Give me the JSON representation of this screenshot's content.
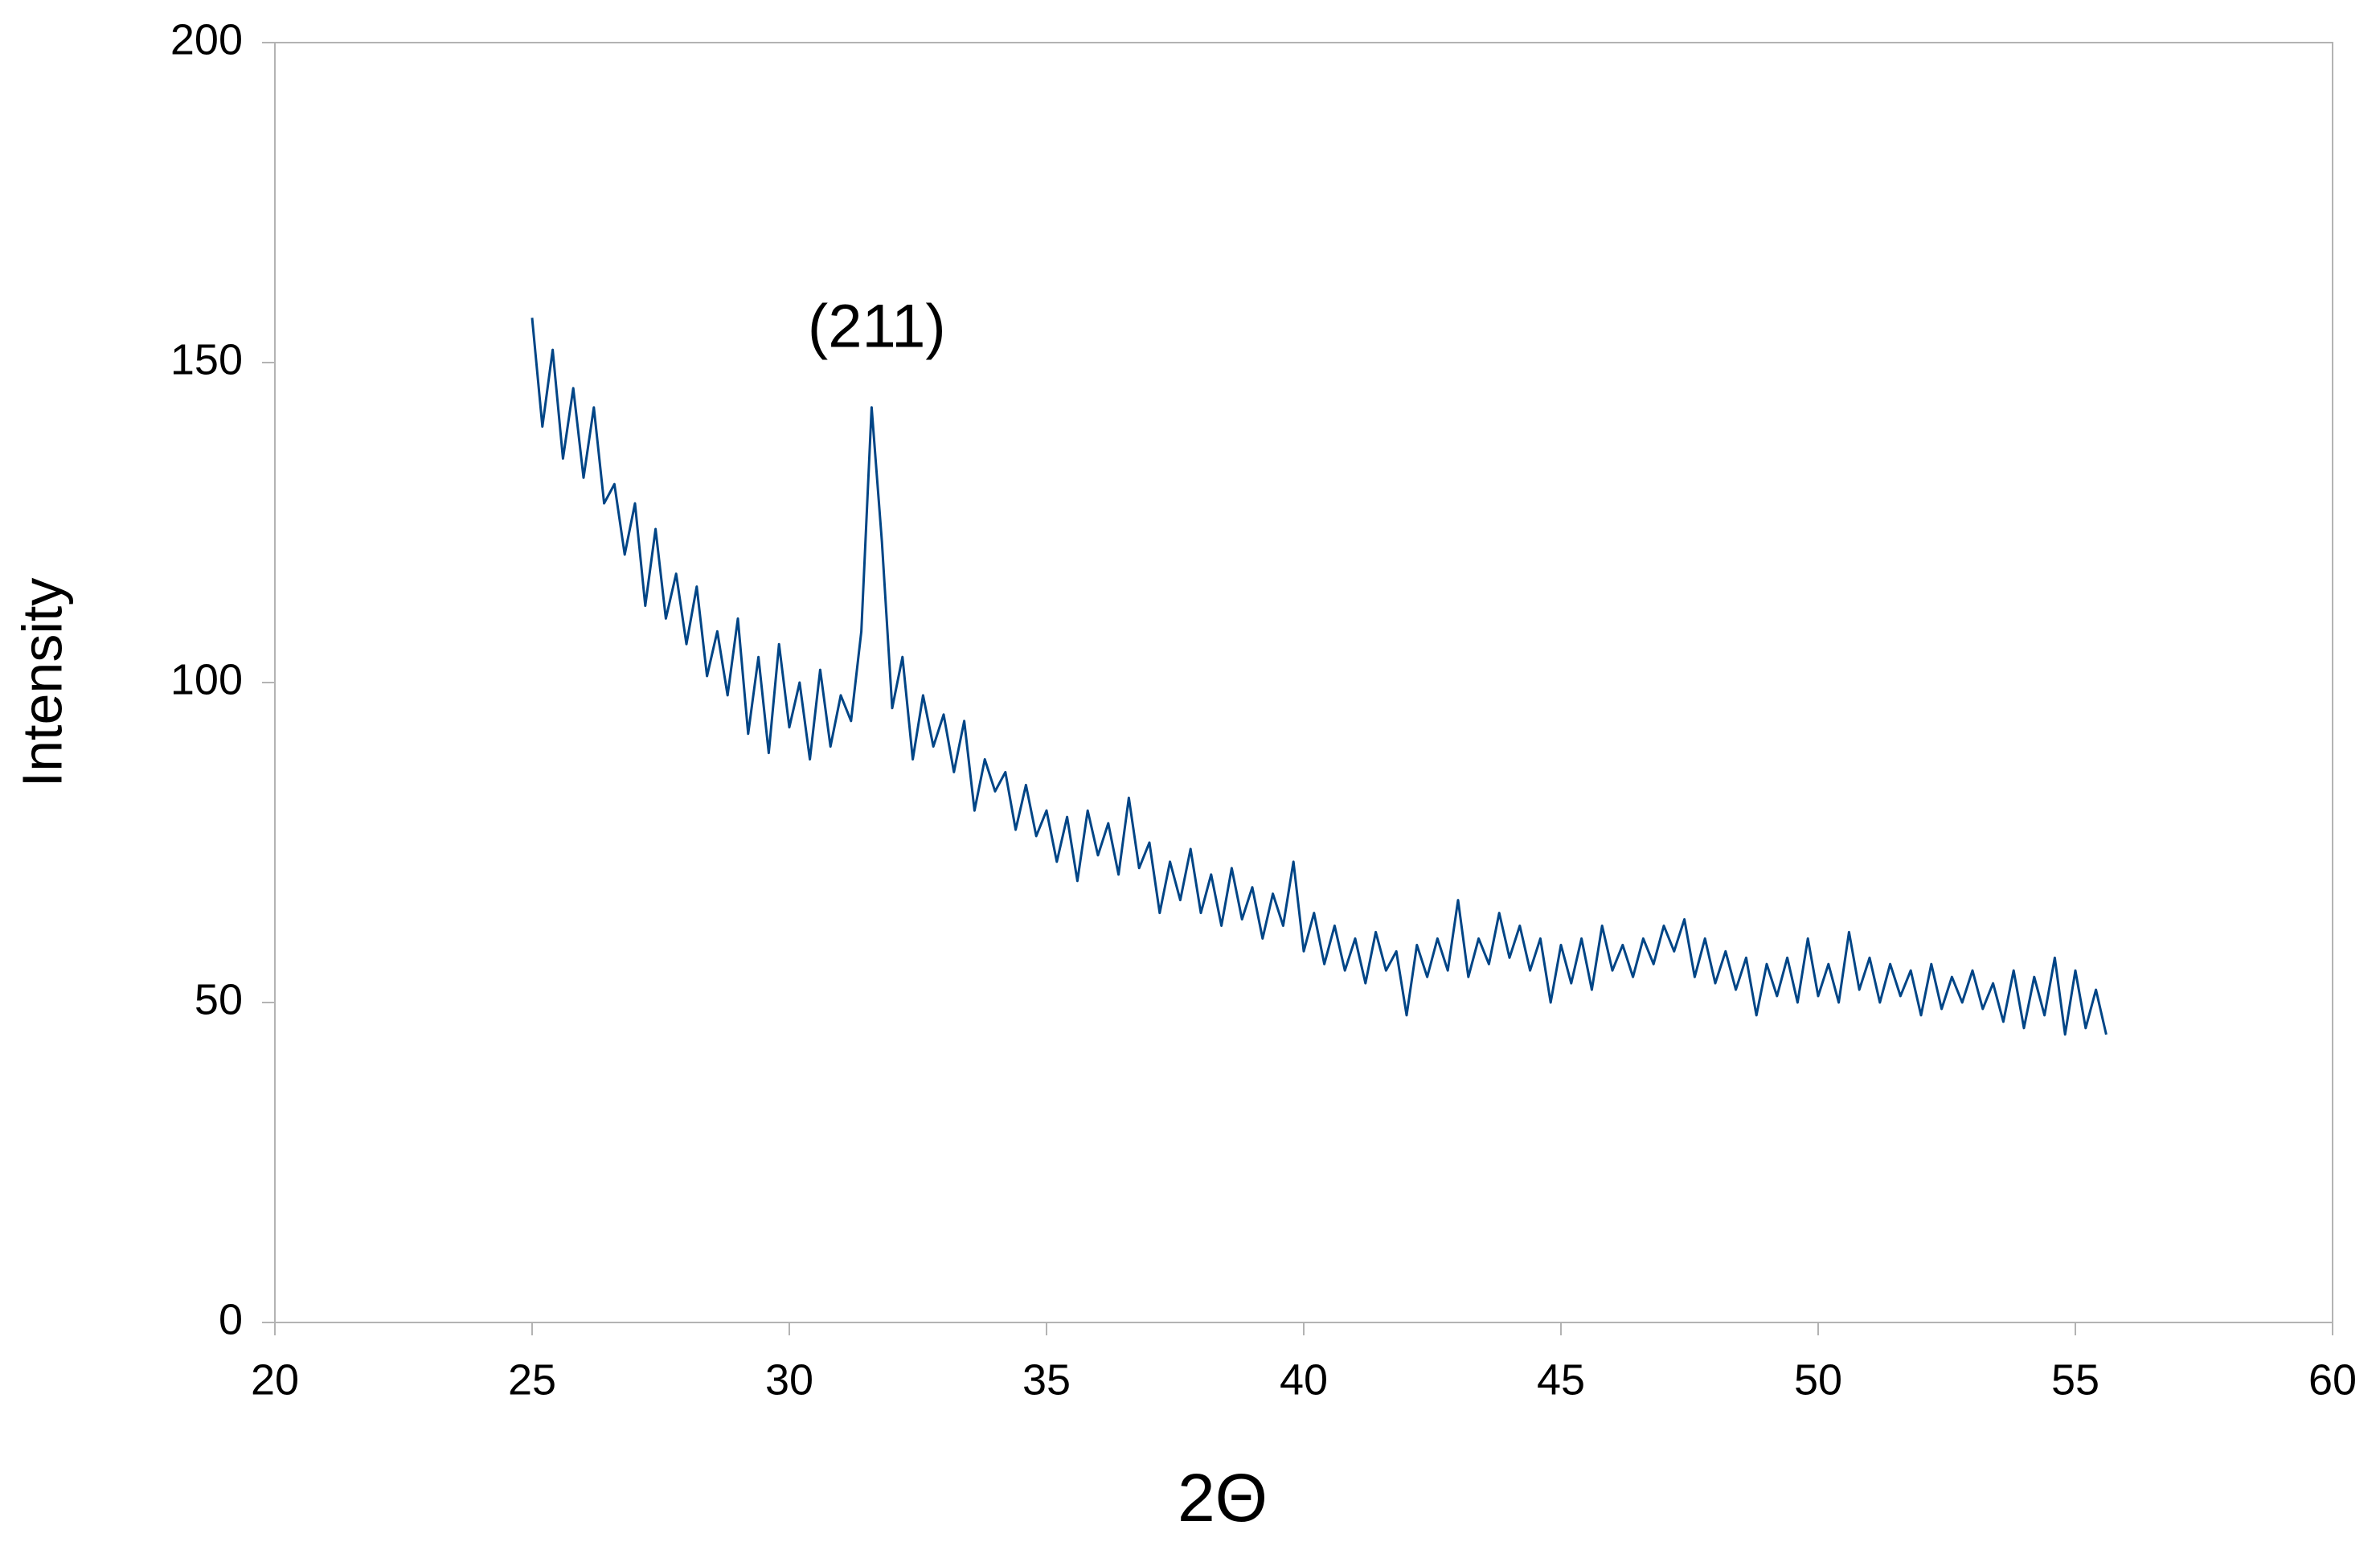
{
  "chart_data": {
    "type": "line",
    "x_label": "2Θ",
    "y_label": "Intensity",
    "xlim": [
      20,
      60
    ],
    "xticks": [
      20,
      25,
      30,
      35,
      40,
      45,
      50,
      55,
      60
    ],
    "ylim": [
      0,
      200
    ],
    "yticks": [
      0,
      50,
      100,
      150,
      200
    ],
    "grid": false,
    "annotations": [
      {
        "text": "(211)",
        "x": 31.7,
        "y": 155
      }
    ],
    "x": [
      25.0,
      25.2,
      25.4,
      25.6,
      25.8,
      26.0,
      26.2,
      26.4,
      26.6,
      26.8,
      27.0,
      27.2,
      27.4,
      27.6,
      27.8,
      28.0,
      28.2,
      28.4,
      28.6,
      28.8,
      29.0,
      29.2,
      29.4,
      29.6,
      29.8,
      30.0,
      30.2,
      30.4,
      30.6,
      30.8,
      31.0,
      31.2,
      31.4,
      31.6,
      31.8,
      32.0,
      32.2,
      32.4,
      32.6,
      32.8,
      33.0,
      33.2,
      33.4,
      33.6,
      33.8,
      34.0,
      34.2,
      34.4,
      34.6,
      34.8,
      35.0,
      35.2,
      35.4,
      35.6,
      35.8,
      36.0,
      36.2,
      36.4,
      36.6,
      36.8,
      37.0,
      37.2,
      37.4,
      37.6,
      37.8,
      38.0,
      38.2,
      38.4,
      38.6,
      38.8,
      39.0,
      39.2,
      39.4,
      39.6,
      39.8,
      40.0,
      40.2,
      40.4,
      40.6,
      40.8,
      41.0,
      41.2,
      41.4,
      41.6,
      41.8,
      42.0,
      42.2,
      42.4,
      42.6,
      42.8,
      43.0,
      43.2,
      43.4,
      43.6,
      43.8,
      44.0,
      44.2,
      44.4,
      44.6,
      44.8,
      45.0,
      45.2,
      45.4,
      45.6,
      45.8,
      46.0,
      46.2,
      46.4,
      46.6,
      46.8,
      47.0,
      47.2,
      47.4,
      47.6,
      47.8,
      48.0,
      48.2,
      48.4,
      48.6,
      48.8,
      49.0,
      49.2,
      49.4,
      49.6,
      49.8,
      50.0,
      50.2,
      50.4,
      50.6,
      50.8,
      51.0,
      51.2,
      51.4,
      51.6,
      51.8,
      52.0,
      52.2,
      52.4,
      52.6,
      52.8,
      53.0,
      53.2,
      53.4,
      53.6,
      53.8,
      54.0,
      54.2,
      54.4,
      54.6,
      54.8,
      55.0,
      55.2,
      55.4,
      55.6
    ],
    "series": [
      {
        "color": "#004586",
        "values": [
          157,
          140,
          152,
          135,
          146,
          132,
          143,
          128,
          131,
          120,
          128,
          112,
          124,
          110,
          117,
          106,
          115,
          101,
          108,
          98,
          110,
          92,
          104,
          89,
          106,
          93,
          100,
          88,
          102,
          90,
          98,
          94,
          108,
          143,
          122,
          96,
          104,
          88,
          98,
          90,
          95,
          86,
          94,
          80,
          88,
          83,
          86,
          77,
          84,
          76,
          80,
          72,
          79,
          69,
          80,
          73,
          78,
          70,
          82,
          71,
          75,
          64,
          72,
          66,
          74,
          64,
          70,
          62,
          71,
          63,
          68,
          60,
          67,
          62,
          72,
          58,
          64,
          56,
          62,
          55,
          60,
          53,
          61,
          55,
          58,
          48,
          59,
          54,
          60,
          55,
          66,
          54,
          60,
          56,
          64,
          57,
          62,
          55,
          60,
          50,
          59,
          53,
          60,
          52,
          62,
          55,
          59,
          54,
          60,
          56,
          62,
          58,
          63,
          54,
          60,
          53,
          58,
          52,
          57,
          48,
          56,
          51,
          57,
          50,
          60,
          51,
          56,
          50,
          61,
          52,
          57,
          50,
          56,
          51,
          55,
          48,
          56,
          49,
          54,
          50,
          55,
          49,
          53,
          47,
          55,
          46,
          54,
          48,
          57,
          45,
          55,
          46,
          52,
          45
        ]
      }
    ]
  }
}
